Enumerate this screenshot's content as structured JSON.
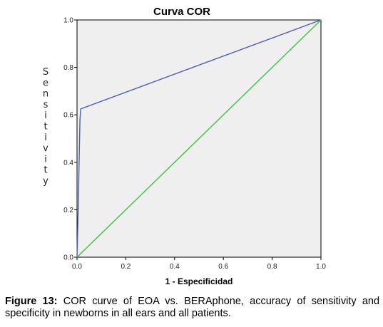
{
  "chart_data": {
    "type": "line",
    "title": "Curva COR",
    "xlabel": "1 - Especificidad",
    "ylabel": "Sensitivity",
    "xlim": [
      0,
      1
    ],
    "ylim": [
      0,
      1
    ],
    "x_ticks": [
      "0.0",
      "0.2",
      "0.4",
      "0.6",
      "0.8",
      "1.0"
    ],
    "y_ticks": [
      "0.0",
      "0.2",
      "0.4",
      "0.6",
      "0.8",
      "1.0"
    ],
    "series": [
      {
        "color": "#4a5fb0",
        "points": [
          [
            0,
            0
          ],
          [
            0.005,
            0.21
          ],
          [
            0.012,
            0.58
          ],
          [
            0.015,
            0.625
          ],
          [
            1.0,
            1.0
          ]
        ]
      },
      {
        "color": "#3ec23e",
        "points": [
          [
            0,
            0
          ],
          [
            1,
            1
          ]
        ]
      }
    ],
    "background": "#efefef"
  },
  "caption": {
    "label": "Figure 13:",
    "text": "COR curve of EOA vs. BERAphone, accuracy of sensitivity and specificity in newborns in all ears and all patients."
  }
}
